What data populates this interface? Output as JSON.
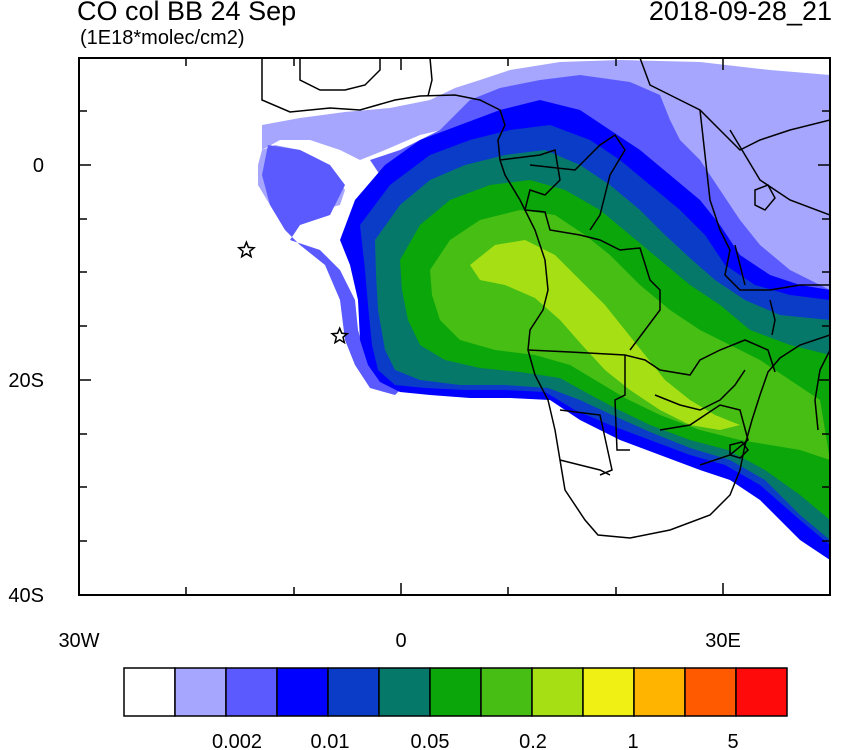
{
  "title_left": "CO col BB 24 Sep",
  "units": "(1E18*molec/cm2)",
  "title_right": "2018-09-28_21",
  "axes": {
    "x_ticks": [
      "30W",
      "0",
      "30E"
    ],
    "y_ticks": [
      "0",
      "20S",
      "40S"
    ],
    "lon_range": [
      -30,
      40
    ],
    "lat_range": [
      -40,
      10
    ]
  },
  "colorbar": {
    "colors": [
      "#ffffff",
      "#a6a6ff",
      "#5a5aff",
      "#0000ff",
      "#0a3cc8",
      "#06786a",
      "#0aa60a",
      "#46be14",
      "#a6e014",
      "#f0f014",
      "#ffb400",
      "#ff5a00",
      "#ff0a0a"
    ],
    "labels": [
      "0.002",
      "0.01",
      "0.05",
      "0.2",
      "1",
      "5"
    ]
  },
  "markers": {
    "stars": [
      {
        "lon": -14.4,
        "lat": -7.9
      },
      {
        "lon": -5.7,
        "lat": -15.9
      }
    ]
  },
  "colors": {
    "light_blue": "#a6a6ff",
    "mid_blue": "#5a5aff",
    "blue": "#0000ff",
    "dark_blue": "#0a3cc8",
    "teal": "#06786a",
    "green": "#0aa60a",
    "light_green": "#46be14",
    "lime": "#a6e014"
  }
}
